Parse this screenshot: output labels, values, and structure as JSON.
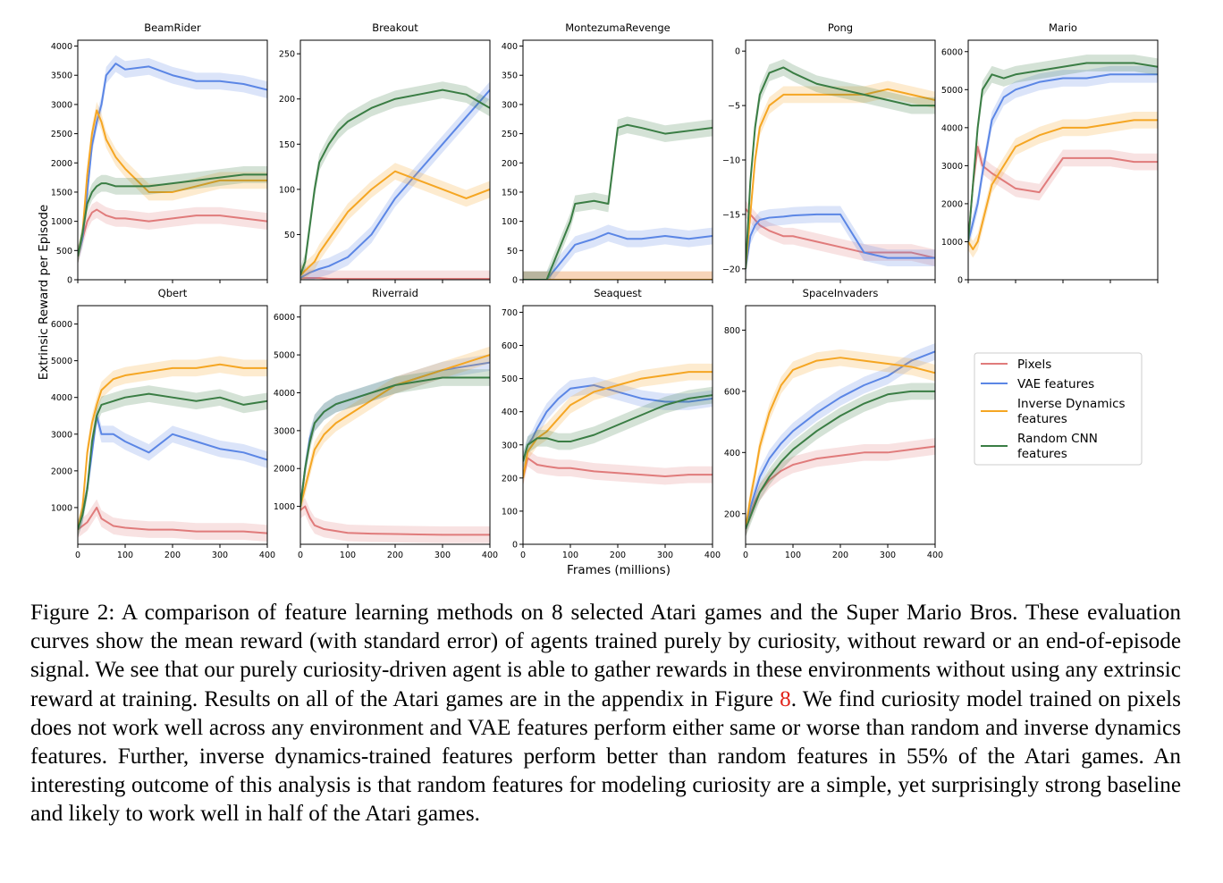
{
  "figure": {
    "shared_ylabel": "Extrinsic Reward per Episode",
    "shared_xlabel": "Frames (millions)",
    "x_ticks": [
      "0",
      "100",
      "200",
      "300",
      "400"
    ],
    "x_range": [
      0,
      400
    ]
  },
  "legend": {
    "placement": "right",
    "entries": [
      {
        "label_lines": [
          "Pixels"
        ],
        "color": "#e07b7b"
      },
      {
        "label_lines": [
          "VAE features"
        ],
        "color": "#5b86e5"
      },
      {
        "label_lines": [
          "Inverse Dynamics",
          "features"
        ],
        "color": "#f5a623"
      },
      {
        "label_lines": [
          "Random CNN",
          "features"
        ],
        "color": "#3a7d44"
      }
    ]
  },
  "chart_data": [
    {
      "type": "line",
      "title": "BeamRider",
      "ylim": [
        0,
        4100
      ],
      "yticks": [
        0,
        500,
        1000,
        1500,
        2000,
        2500,
        3000,
        3500,
        4000
      ],
      "x": [
        0,
        10,
        20,
        30,
        40,
        50,
        60,
        80,
        100,
        150,
        200,
        250,
        300,
        350,
        400
      ],
      "series": [
        {
          "name": "Pixels",
          "values": [
            400,
            700,
            1000,
            1150,
            1200,
            1150,
            1100,
            1050,
            1050,
            1000,
            1050,
            1100,
            1100,
            1050,
            1000
          ]
        },
        {
          "name": "VAE features",
          "values": [
            400,
            700,
            1500,
            2300,
            2700,
            3000,
            3500,
            3700,
            3600,
            3650,
            3500,
            3400,
            3400,
            3350,
            3250
          ]
        },
        {
          "name": "Inverse Dynamics features",
          "values": [
            400,
            800,
            1800,
            2500,
            2900,
            2700,
            2400,
            2100,
            1900,
            1500,
            1500,
            1600,
            1700,
            1700,
            1700
          ]
        },
        {
          "name": "Random CNN features",
          "values": [
            400,
            800,
            1300,
            1500,
            1600,
            1650,
            1650,
            1600,
            1600,
            1600,
            1650,
            1700,
            1750,
            1800,
            1800
          ]
        }
      ]
    },
    {
      "type": "line",
      "title": "Breakout",
      "ylim": [
        0,
        265
      ],
      "yticks": [
        50,
        100,
        150,
        200,
        250
      ],
      "x": [
        0,
        10,
        20,
        30,
        40,
        60,
        80,
        100,
        150,
        200,
        250,
        300,
        350,
        400
      ],
      "series": [
        {
          "name": "Pixels",
          "values": [
            2,
            2,
            2,
            2,
            2,
            1,
            1,
            1,
            1,
            1,
            1,
            1,
            1,
            1
          ]
        },
        {
          "name": "VAE features",
          "values": [
            2,
            5,
            8,
            10,
            12,
            15,
            20,
            25,
            50,
            90,
            120,
            150,
            180,
            210
          ]
        },
        {
          "name": "Inverse Dynamics features",
          "values": [
            5,
            10,
            15,
            20,
            30,
            45,
            60,
            75,
            100,
            120,
            110,
            100,
            90,
            100
          ]
        },
        {
          "name": "Random CNN features",
          "values": [
            5,
            20,
            60,
            100,
            130,
            150,
            165,
            175,
            190,
            200,
            205,
            210,
            205,
            190
          ]
        }
      ]
    },
    {
      "type": "line",
      "title": "MontezumaRevenge",
      "ylim": [
        0,
        410
      ],
      "yticks": [
        0,
        50,
        100,
        150,
        200,
        250,
        300,
        350,
        400
      ],
      "x": [
        0,
        50,
        100,
        110,
        150,
        180,
        200,
        220,
        250,
        300,
        350,
        400
      ],
      "series": [
        {
          "name": "Pixels",
          "values": [
            0,
            0,
            0,
            0,
            0,
            0,
            0,
            0,
            0,
            0,
            0,
            0
          ]
        },
        {
          "name": "VAE features",
          "values": [
            0,
            0,
            50,
            60,
            70,
            80,
            75,
            70,
            70,
            75,
            70,
            75
          ]
        },
        {
          "name": "Inverse Dynamics features",
          "values": [
            0,
            0,
            0,
            0,
            0,
            0,
            0,
            0,
            0,
            0,
            0,
            0
          ]
        },
        {
          "name": "Random CNN features",
          "values": [
            0,
            0,
            100,
            130,
            135,
            130,
            260,
            265,
            260,
            250,
            255,
            260
          ]
        }
      ]
    },
    {
      "type": "line",
      "title": "Pong",
      "ylim": [
        -21,
        1
      ],
      "yticks": [
        0,
        -5,
        -10,
        -15,
        -20
      ],
      "x": [
        0,
        10,
        20,
        30,
        50,
        80,
        100,
        150,
        200,
        250,
        300,
        350,
        400
      ],
      "series": [
        {
          "name": "Pixels",
          "values": [
            -14.5,
            -15,
            -15.5,
            -16,
            -16.5,
            -17,
            -17,
            -17.5,
            -18,
            -18.5,
            -18.5,
            -18.5,
            -19
          ]
        },
        {
          "name": "VAE features",
          "values": [
            -20,
            -17,
            -16,
            -15.5,
            -15.3,
            -15.2,
            -15.1,
            -15,
            -15,
            -18.5,
            -19,
            -19,
            -19
          ]
        },
        {
          "name": "Inverse Dynamics features",
          "values": [
            -20,
            -15,
            -10,
            -7,
            -5,
            -4,
            -4,
            -4,
            -4,
            -4,
            -3.5,
            -4,
            -4.5
          ]
        },
        {
          "name": "Random CNN features",
          "values": [
            -20,
            -12,
            -7,
            -4,
            -2,
            -1.5,
            -2,
            -3,
            -3.5,
            -4,
            -4.5,
            -5,
            -5
          ]
        }
      ]
    },
    {
      "type": "line",
      "title": "Mario",
      "ylim": [
        0,
        6300
      ],
      "yticks": [
        0,
        1000,
        2000,
        3000,
        4000,
        5000,
        6000
      ],
      "x": [
        0,
        10,
        20,
        30,
        50,
        75,
        100,
        150,
        200,
        250,
        300,
        350,
        400
      ],
      "series": [
        {
          "name": "Pixels",
          "values": [
            1000,
            2500,
            3500,
            3000,
            2800,
            2600,
            2400,
            2300,
            3200,
            3200,
            3200,
            3100,
            3100
          ]
        },
        {
          "name": "VAE features",
          "values": [
            1000,
            1500,
            2000,
            2800,
            4200,
            4800,
            5000,
            5200,
            5300,
            5300,
            5400,
            5400,
            5400
          ]
        },
        {
          "name": "Inverse Dynamics features",
          "values": [
            1000,
            800,
            1000,
            1500,
            2500,
            3000,
            3500,
            3800,
            4000,
            4000,
            4100,
            4200,
            4200
          ]
        },
        {
          "name": "Random CNN features",
          "values": [
            1000,
            2500,
            4000,
            5000,
            5400,
            5300,
            5400,
            5500,
            5600,
            5700,
            5700,
            5700,
            5600
          ]
        }
      ]
    },
    {
      "type": "line",
      "title": "Qbert",
      "ylim": [
        0,
        6500
      ],
      "yticks": [
        1000,
        2000,
        3000,
        4000,
        5000,
        6000
      ],
      "x": [
        0,
        10,
        20,
        30,
        40,
        50,
        75,
        100,
        150,
        200,
        250,
        300,
        350,
        400
      ],
      "series": [
        {
          "name": "Pixels",
          "values": [
            400,
            500,
            600,
            800,
            1000,
            700,
            500,
            450,
            400,
            400,
            350,
            350,
            350,
            300
          ]
        },
        {
          "name": "VAE features",
          "values": [
            400,
            800,
            1500,
            2500,
            3500,
            3000,
            3000,
            2800,
            2500,
            3000,
            2800,
            2600,
            2500,
            2300
          ]
        },
        {
          "name": "Inverse Dynamics features",
          "values": [
            400,
            1000,
            2500,
            3300,
            3800,
            4200,
            4500,
            4600,
            4700,
            4800,
            4800,
            4900,
            4800,
            4800
          ]
        },
        {
          "name": "Random CNN features",
          "values": [
            400,
            800,
            1500,
            2800,
            3500,
            3800,
            3900,
            4000,
            4100,
            4000,
            3900,
            4000,
            3800,
            3900
          ]
        }
      ]
    },
    {
      "type": "line",
      "title": "Riverraid",
      "ylim": [
        0,
        6300
      ],
      "yticks": [
        1000,
        2000,
        3000,
        4000,
        5000,
        6000
      ],
      "x": [
        0,
        10,
        20,
        30,
        50,
        75,
        100,
        150,
        200,
        250,
        300,
        350,
        400
      ],
      "series": [
        {
          "name": "Pixels",
          "values": [
            900,
            1000,
            700,
            500,
            400,
            350,
            300,
            280,
            270,
            260,
            250,
            250,
            250
          ]
        },
        {
          "name": "VAE features",
          "values": [
            1000,
            2000,
            2800,
            3200,
            3500,
            3700,
            3800,
            4000,
            4200,
            4400,
            4600,
            4700,
            4800
          ]
        },
        {
          "name": "Inverse Dynamics features",
          "values": [
            1000,
            1500,
            2000,
            2500,
            2900,
            3200,
            3400,
            3800,
            4200,
            4400,
            4600,
            4800,
            5000
          ]
        },
        {
          "name": "Random CNN features",
          "values": [
            1000,
            2000,
            2700,
            3200,
            3500,
            3700,
            3800,
            4000,
            4200,
            4300,
            4400,
            4400,
            4400
          ]
        }
      ]
    },
    {
      "type": "line",
      "title": "Seaquest",
      "ylim": [
        0,
        720
      ],
      "yticks": [
        0,
        100,
        200,
        300,
        400,
        500,
        600,
        700
      ],
      "x": [
        0,
        10,
        20,
        30,
        50,
        75,
        100,
        150,
        200,
        250,
        300,
        350,
        400
      ],
      "series": [
        {
          "name": "Pixels",
          "values": [
            200,
            260,
            250,
            240,
            235,
            230,
            230,
            220,
            215,
            210,
            205,
            210,
            210
          ]
        },
        {
          "name": "VAE features",
          "values": [
            250,
            300,
            320,
            350,
            400,
            440,
            470,
            480,
            460,
            440,
            430,
            430,
            440
          ]
        },
        {
          "name": "Inverse Dynamics features",
          "values": [
            200,
            280,
            300,
            320,
            340,
            380,
            420,
            460,
            480,
            500,
            510,
            520,
            520
          ]
        },
        {
          "name": "Random CNN features",
          "values": [
            250,
            300,
            310,
            320,
            320,
            310,
            310,
            330,
            360,
            390,
            420,
            440,
            450
          ]
        }
      ]
    },
    {
      "type": "line",
      "title": "SpaceInvaders",
      "ylim": [
        100,
        880
      ],
      "yticks": [
        200,
        400,
        600,
        800
      ],
      "x": [
        0,
        10,
        20,
        30,
        50,
        75,
        100,
        150,
        200,
        250,
        300,
        350,
        400
      ],
      "series": [
        {
          "name": "Pixels",
          "values": [
            150,
            200,
            240,
            270,
            310,
            340,
            360,
            380,
            390,
            400,
            400,
            410,
            420
          ]
        },
        {
          "name": "VAE features",
          "values": [
            150,
            220,
            270,
            320,
            380,
            430,
            470,
            530,
            580,
            620,
            650,
            700,
            730
          ]
        },
        {
          "name": "Inverse Dynamics features",
          "values": [
            150,
            250,
            330,
            420,
            530,
            620,
            670,
            700,
            710,
            700,
            690,
            680,
            660
          ]
        },
        {
          "name": "Random CNN features",
          "values": [
            150,
            190,
            230,
            270,
            320,
            370,
            410,
            470,
            520,
            560,
            590,
            600,
            600
          ]
        }
      ]
    }
  ],
  "caption": {
    "label": "Figure 2:",
    "text_before_ref": " A comparison of feature learning methods on 8 selected Atari games and the Super Mario Bros. These evaluation curves show the mean reward (with standard error) of agents trained purely by curiosity, without reward or an end-of-episode signal. We see that our purely curiosity-driven agent is able to gather rewards in these environments without using any extrinsic reward at training. Results on all of the Atari games are in the appendix in Figure ",
    "ref": "8",
    "text_after_ref": ". We find curiosity model trained on pixels does not work well across any environment and VAE features perform either same or worse than random and inverse dynamics features. Further, inverse dynamics-trained features perform better than random features in 55% of the Atari games. An interesting outcome of this analysis is that random features for modeling curiosity are a simple, yet surprisingly strong baseline and likely to work well in half of the Atari games."
  }
}
